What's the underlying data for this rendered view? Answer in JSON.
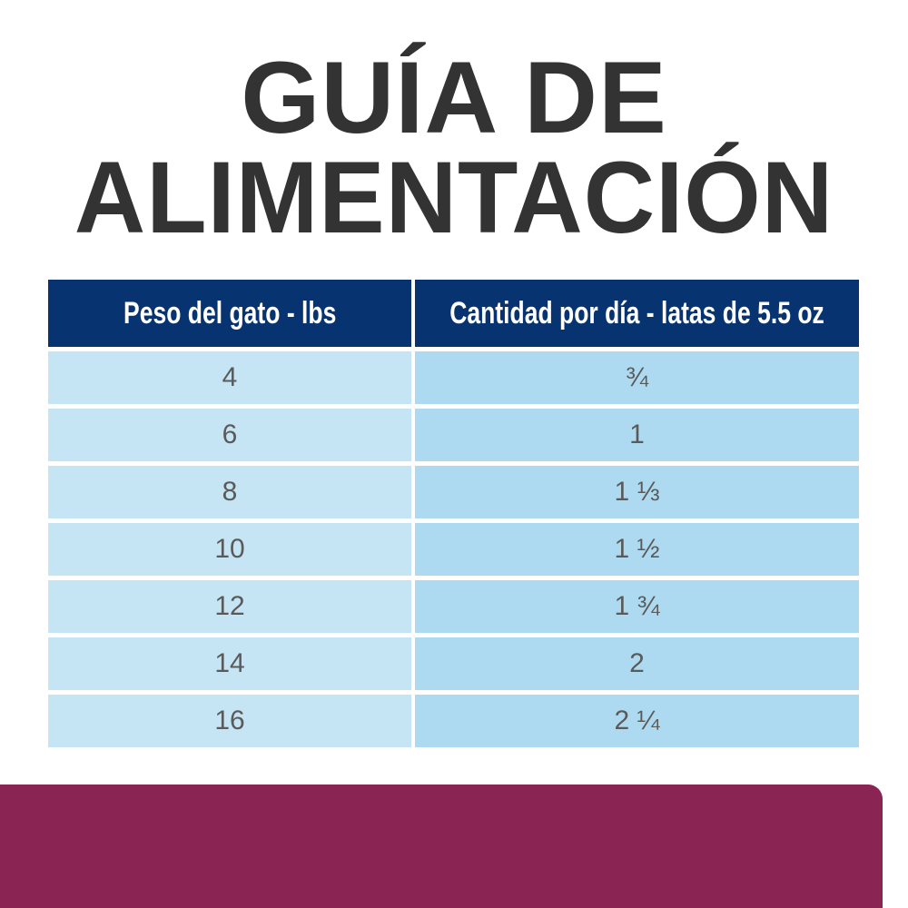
{
  "title": {
    "line1": "GUÍA DE",
    "line2": "ALIMENTACIÓN"
  },
  "table": {
    "headers": [
      "Peso del gato - lbs",
      "Cantidad por día - latas de 5.5 oz"
    ],
    "rows": [
      [
        "4",
        "¾"
      ],
      [
        "6",
        "1"
      ],
      [
        "8",
        "1 ⅓"
      ],
      [
        "10",
        "1 ½"
      ],
      [
        "12",
        "1 ¾"
      ],
      [
        "14",
        "2"
      ],
      [
        "16",
        "2 ¼"
      ]
    ]
  },
  "colors": {
    "header": "#073470",
    "cell_left": "#c5e4f4",
    "cell_right": "#addaf0",
    "band": "#8a2553",
    "title": "#333333"
  }
}
